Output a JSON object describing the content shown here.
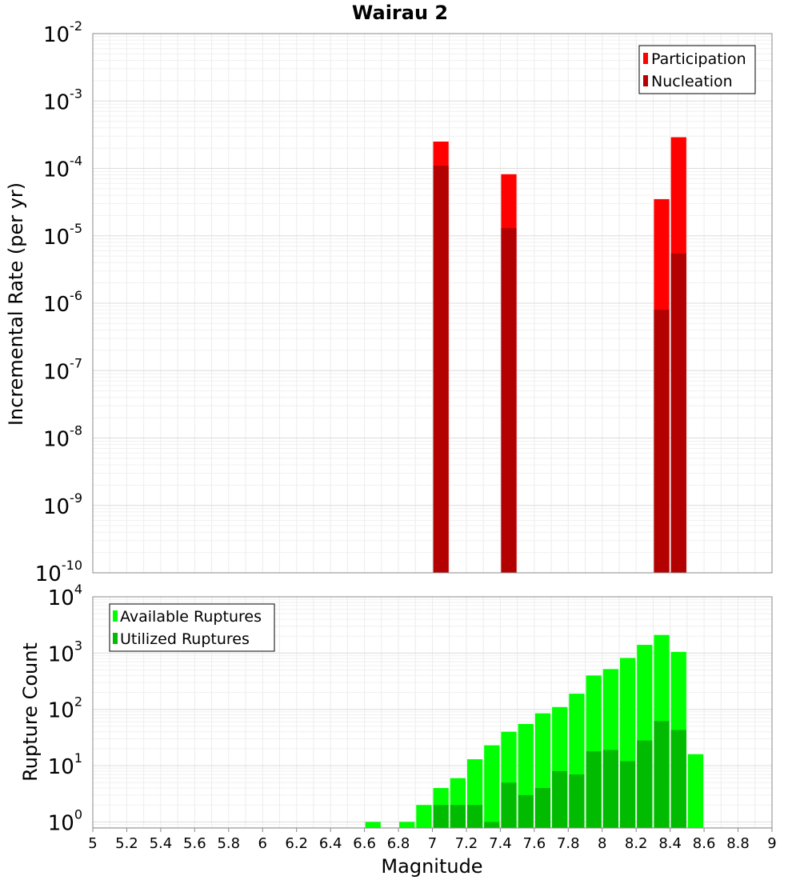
{
  "chart_data": [
    {
      "type": "bar",
      "title": "Wairau 2",
      "xlabel": "",
      "ylabel": "Incremental Rate (per yr)",
      "yscale": "log",
      "ylim": [
        1e-10,
        0.01
      ],
      "xlim": [
        5,
        9
      ],
      "bar_width": 0.1,
      "grid": true,
      "legend_position": "top-right",
      "ytick_exponents": [
        "-2",
        "-3",
        "-4",
        "-5",
        "-6",
        "-7",
        "-8",
        "-9",
        "-10"
      ],
      "ytick_base": "10",
      "series": [
        {
          "name": "Participation",
          "color": "#ff0000",
          "x": [
            7.05,
            7.45,
            8.35,
            8.45
          ],
          "values": [
            0.00025,
            8.2e-05,
            3.5e-05,
            0.00029
          ]
        },
        {
          "name": "Nucleation",
          "color": "#b30000",
          "x": [
            7.05,
            7.45,
            8.35,
            8.45
          ],
          "values": [
            0.00011,
            1.3e-05,
            8e-07,
            5.5e-06
          ]
        }
      ]
    },
    {
      "type": "bar",
      "title": "",
      "xlabel": "Magnitude",
      "ylabel": "Rupture Count",
      "yscale": "log",
      "ylim": [
        0.78,
        10000
      ],
      "xlim": [
        5,
        9
      ],
      "bar_width": 0.1,
      "grid": true,
      "legend_position": "top-left",
      "ytick_exponents": [
        "4",
        "3",
        "2",
        "1",
        "0"
      ],
      "ytick_base": "10",
      "xtick_labels": [
        "5",
        "5.2",
        "5.4",
        "5.6",
        "5.8",
        "6",
        "6.2",
        "6.4",
        "6.6",
        "6.8",
        "7",
        "7.2",
        "7.4",
        "7.6",
        "7.8",
        "8",
        "8.2",
        "8.4",
        "8.6",
        "8.8",
        "9"
      ],
      "series": [
        {
          "name": "Available Ruptures",
          "color": "#00ff00",
          "x": [
            6.65,
            6.85,
            6.95,
            7.05,
            7.15,
            7.25,
            7.35,
            7.45,
            7.55,
            7.65,
            7.75,
            7.85,
            7.95,
            8.05,
            8.15,
            8.25,
            8.35,
            8.45,
            8.55
          ],
          "values": [
            1,
            1,
            2,
            4,
            6,
            13,
            23,
            40,
            55,
            85,
            110,
            190,
            400,
            520,
            820,
            1400,
            2100,
            1050,
            16
          ]
        },
        {
          "name": "Utilized Ruptures",
          "color": "#00bb00",
          "x": [
            7.05,
            7.15,
            7.25,
            7.35,
            7.45,
            7.55,
            7.65,
            7.75,
            7.85,
            7.95,
            8.05,
            8.15,
            8.25,
            8.35,
            8.45
          ],
          "values": [
            2,
            2,
            2,
            1,
            5,
            3,
            4,
            8,
            7,
            18,
            19,
            12,
            28,
            62,
            43
          ]
        }
      ]
    }
  ]
}
